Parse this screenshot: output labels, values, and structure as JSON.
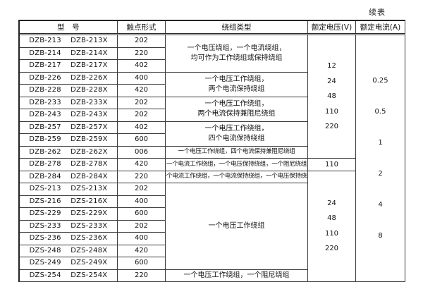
{
  "continued_label": "续表",
  "colors": {
    "background": "#ffffff",
    "text": "#141414",
    "border": "#3a3a3a"
  },
  "table": {
    "headers": [
      "型　号",
      "触点形式",
      "绕组类型",
      "额定电压(V)",
      "额定电流(A)"
    ],
    "rows": [
      {
        "model": "DZB-213",
        "model_x": "DZB-213X",
        "contact": "202"
      },
      {
        "model": "DZB-214",
        "model_x": "DZB-214X",
        "contact": "220"
      },
      {
        "model": "DZB-217",
        "model_x": "DZB-217X",
        "contact": "402"
      },
      {
        "model": "DZB-226",
        "model_x": "DZB-226X",
        "contact": "400"
      },
      {
        "model": "DZB-228",
        "model_x": "DZB-228X",
        "contact": "420"
      },
      {
        "model": "DZB-233",
        "model_x": "DZB-233X",
        "contact": "202"
      },
      {
        "model": "DZB-243",
        "model_x": "DZB-243X",
        "contact": "202"
      },
      {
        "model": "DZB-257",
        "model_x": "DZB-257X",
        "contact": "402"
      },
      {
        "model": "DZB-259",
        "model_x": "DZB-259X",
        "contact": "600"
      },
      {
        "model": "DZB-262",
        "model_x": "DZB-262X",
        "contact": "006"
      },
      {
        "model": "DZB-278",
        "model_x": "DZB-278X",
        "contact": "420"
      },
      {
        "model": "DZB-284",
        "model_x": "DZB-284X",
        "contact": "220"
      },
      {
        "model": "DZS-213",
        "model_x": "DZS-213X",
        "contact": "202"
      },
      {
        "model": "DZS-216",
        "model_x": "DZS-216X",
        "contact": "400"
      },
      {
        "model": "DZS-229",
        "model_x": "DZS-229X",
        "contact": "600"
      },
      {
        "model": "DZS-233",
        "model_x": "DZS-233X",
        "contact": "202"
      },
      {
        "model": "DZS-236",
        "model_x": "DZS-236X",
        "contact": "400"
      },
      {
        "model": "DZS-248",
        "model_x": "DZS-248X",
        "contact": "420"
      },
      {
        "model": "DZS-249",
        "model_x": "DZS-249X",
        "contact": "600"
      },
      {
        "model": "DZS-254",
        "model_x": "DZS-254X",
        "contact": "220"
      }
    ],
    "winding_groups": [
      {
        "start": 1,
        "end": 3,
        "small": false,
        "lines": [
          "一个电压绕组，一个电流绕组，",
          "均可作为工作绕组或保持绕组"
        ]
      },
      {
        "start": 4,
        "end": 5,
        "small": false,
        "lines": [
          "一个电压工作绕组，",
          "两个电流保持绕组"
        ]
      },
      {
        "start": 6,
        "end": 7,
        "small": false,
        "lines": [
          "一个电压工作绕组，",
          "两个电流保持兼阻尼绕组"
        ]
      },
      {
        "start": 8,
        "end": 9,
        "small": false,
        "lines": [
          "一个电压工作绕组，",
          "四个电流保持绕组"
        ]
      },
      {
        "start": 10,
        "end": 10,
        "small": true,
        "lines": [
          "一个电压工作绕组，四个电流保持兼阻尼绕组"
        ]
      },
      {
        "start": 11,
        "end": 11,
        "small": true,
        "lines": [
          "一个电流工作绕组，一个电压保持绕组，一个阻尼绕组"
        ]
      },
      {
        "start": 12,
        "end": 12,
        "small": true,
        "lines": [
          "一个电流工作绕组，一个电流保持绕组，一个电压保持绕组"
        ]
      },
      {
        "start": 13,
        "end": 19,
        "small": false,
        "lines": [
          "一个电压工作绕组"
        ]
      },
      {
        "start": 20,
        "end": 20,
        "small": false,
        "lines": [
          "一个电压工作绕组，一个阻尼绕组"
        ]
      }
    ],
    "voltage_groups": [
      {
        "start": 1,
        "end": 10,
        "values": [
          "12",
          "24",
          "48",
          "110",
          "220"
        ]
      },
      {
        "start": 11,
        "end": 11,
        "values": [
          "110"
        ]
      },
      {
        "start": 12,
        "end": 20,
        "values": [
          "24",
          "48",
          "110",
          "220"
        ]
      }
    ],
    "current_groups": [
      {
        "start": 1,
        "end": 20,
        "values": [
          "0.25",
          "0.5",
          "1",
          "2",
          "4",
          "8"
        ]
      }
    ]
  }
}
